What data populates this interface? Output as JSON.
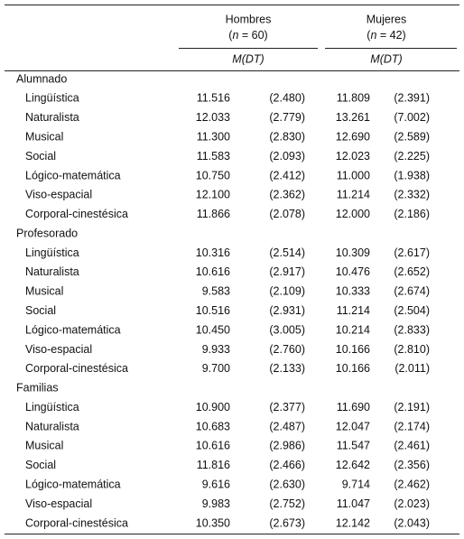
{
  "table": {
    "groups": [
      {
        "name": "Hombres",
        "n_parts": [
          "(",
          "n",
          " = 60)"
        ]
      },
      {
        "name": "Mujeres",
        "n_parts": [
          "(",
          "n",
          " = 42)"
        ]
      }
    ],
    "measure": "M(DT)",
    "sections": [
      {
        "name": "Alumnado",
        "rows": [
          [
            "Lingüística",
            "11.516",
            "(2.480)",
            "11.809",
            "(2.391)"
          ],
          [
            "Naturalista",
            "12.033",
            "(2.779)",
            "13.261",
            "(7.002)"
          ],
          [
            "Musical",
            "11.300",
            "(2.830)",
            "12.690",
            "(2.589)"
          ],
          [
            "Social",
            "11.583",
            "(2.093)",
            "12.023",
            "(2.225)"
          ],
          [
            "Lógico-matemática",
            "10.750",
            "(2.412)",
            "11.000",
            "(1.938)"
          ],
          [
            "Viso-espacial",
            "12.100",
            "(2.362)",
            "11.214",
            "(2.332)"
          ],
          [
            "Corporal-cinestésica",
            "11.866",
            "(2.078)",
            "12.000",
            "(2.186)"
          ]
        ]
      },
      {
        "name": "Profesorado",
        "rows": [
          [
            "Lingüística",
            "10.316",
            "(2.514)",
            "10.309",
            "(2.617)"
          ],
          [
            "Naturalista",
            "10.616",
            "(2.917)",
            "10.476",
            "(2.652)"
          ],
          [
            "Musical",
            "9.583",
            "(2.109)",
            "10.333",
            "(2.674)"
          ],
          [
            "Social",
            "10.516",
            "(2.931)",
            "11.214",
            "(2.504)"
          ],
          [
            "Lógico-matemática",
            "10.450",
            "(3.005)",
            "10.214",
            "(2.833)"
          ],
          [
            "Viso-espacial",
            "9.933",
            "(2.760)",
            "10.166",
            "(2.810)"
          ],
          [
            "Corporal-cinestésica",
            "9.700",
            "(2.133)",
            "10.166",
            "(2.011)"
          ]
        ]
      },
      {
        "name": "Familias",
        "rows": [
          [
            "Lingüística",
            "10.900",
            "(2.377)",
            "11.690",
            "(2.191)"
          ],
          [
            "Naturalista",
            "10.683",
            "(2.487)",
            "12.047",
            "(2.174)"
          ],
          [
            "Musical",
            "10.616",
            "(2.986)",
            "11.547",
            "(2.461)"
          ],
          [
            "Social",
            "11.816",
            "(2.466)",
            "12.642",
            "(2.356)"
          ],
          [
            "Lógico-matemática",
            "9.616",
            "(2.630)",
            "9.714",
            "(2.462)"
          ],
          [
            "Viso-espacial",
            "9.983",
            "(2.752)",
            "11.047",
            "(2.023)"
          ],
          [
            "Corporal-cinestésica",
            "10.350",
            "(2.673)",
            "12.142",
            "(2.043)"
          ]
        ]
      }
    ]
  }
}
